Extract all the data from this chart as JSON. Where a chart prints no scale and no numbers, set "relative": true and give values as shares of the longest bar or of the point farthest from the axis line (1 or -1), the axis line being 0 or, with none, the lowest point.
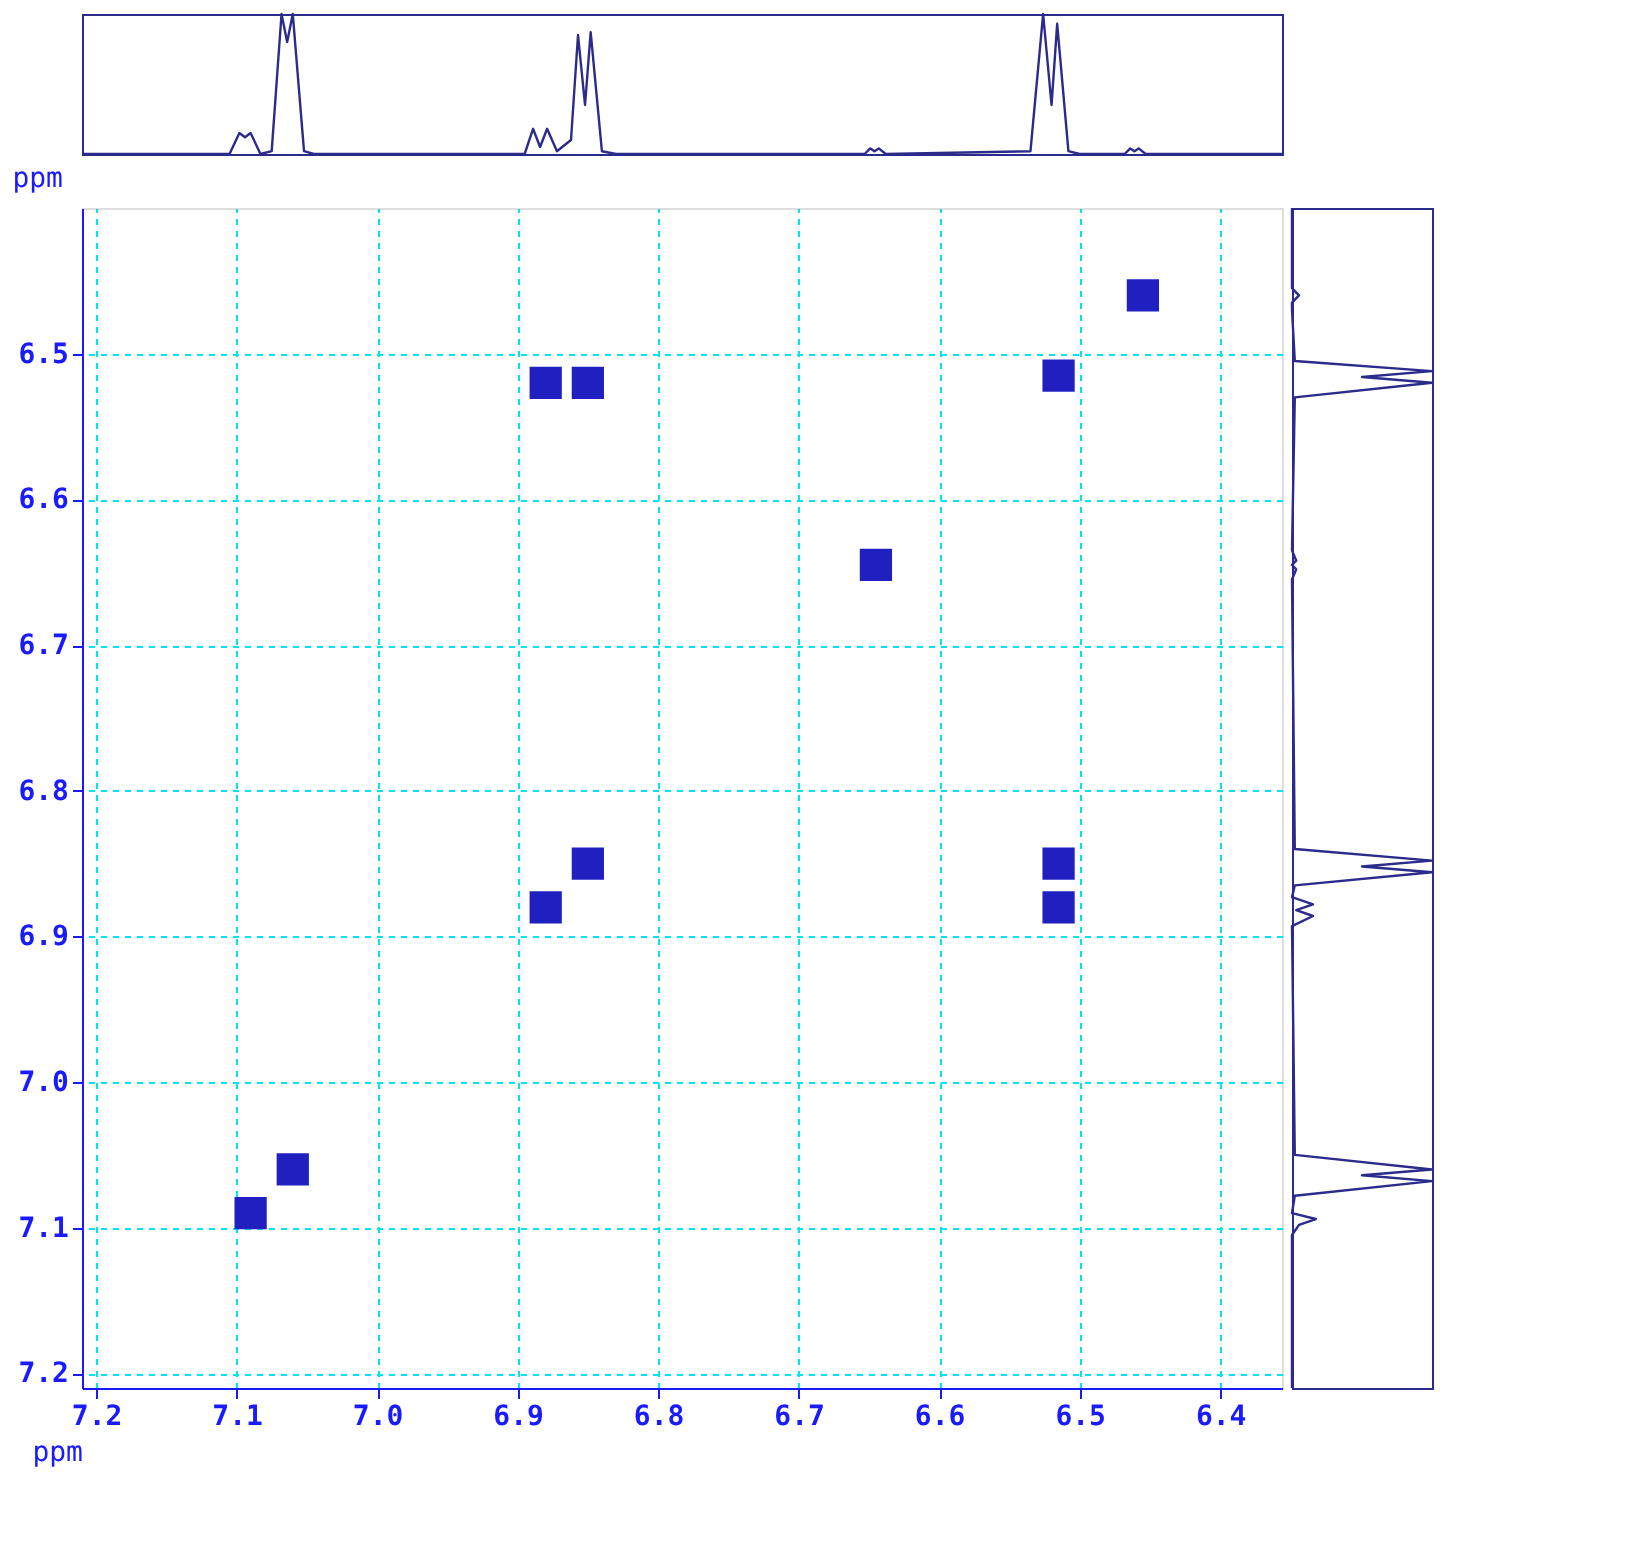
{
  "chart_data": [
    {
      "type": "line",
      "relative": true,
      "tick_labels": false,
      "xlim": [
        7.21,
        6.356
      ],
      "x": [
        7.21,
        7.105,
        7.098,
        7.094,
        7.09,
        7.083,
        7.075,
        7.068,
        7.064,
        7.06,
        7.052,
        7.045,
        6.895,
        6.889,
        6.884,
        6.879,
        6.872,
        6.862,
        6.857,
        6.852,
        6.848,
        6.84,
        6.83,
        6.653,
        6.649,
        6.646,
        6.643,
        6.638,
        6.535,
        6.526,
        6.52,
        6.516,
        6.508,
        6.5,
        6.468,
        6.464,
        6.461,
        6.458,
        6.453,
        6.356
      ],
      "series": [
        {
          "color": "#2b2b8c",
          "values": [
            0.0,
            0.0,
            0.15,
            0.12,
            0.15,
            0.0,
            0.02,
            1.0,
            0.8,
            1.0,
            0.02,
            0.0,
            0.0,
            0.18,
            0.05,
            0.18,
            0.02,
            0.1,
            0.85,
            0.35,
            0.87,
            0.02,
            0.0,
            0.0,
            0.04,
            0.02,
            0.04,
            0.0,
            0.02,
            1.0,
            0.35,
            0.93,
            0.02,
            0.0,
            0.0,
            0.04,
            0.02,
            0.04,
            0.0,
            0.0
          ]
        }
      ]
    },
    {
      "type": "scatter",
      "xlabel": "ppm",
      "ylabel": "ppm",
      "xlim": [
        7.21,
        6.356
      ],
      "ylim": [
        7.21,
        6.4
      ],
      "xticks": [
        7.2,
        7.1,
        {
          "value": 7,
          "label": "7.0"
        },
        6.9,
        6.8,
        6.7,
        6.6,
        6.5,
        6.4
      ],
      "yticks": [
        6.5,
        6.6,
        6.7,
        6.8,
        6.9,
        {
          "value": 7,
          "label": "7.0"
        },
        7.1,
        7.2
      ],
      "grid": true,
      "marker": "square",
      "x": [
        6.88,
        6.85,
        6.515,
        6.455,
        6.645,
        6.85,
        6.88,
        6.515,
        6.515,
        7.06,
        7.09
      ],
      "series": [
        {
          "color": "#2020c0",
          "values": [
            6.52,
            6.52,
            6.515,
            6.46,
            6.645,
            6.85,
            6.88,
            6.85,
            6.88,
            7.06,
            7.09
          ]
        }
      ]
    },
    {
      "type": "line",
      "relative": true,
      "tick_labels": false,
      "orientation": "horizontal",
      "ylim": [
        7.21,
        6.4
      ],
      "x": [
        6.4,
        6.455,
        6.46,
        6.465,
        6.47,
        6.505,
        6.512,
        6.516,
        6.52,
        6.53,
        6.635,
        6.642,
        6.645,
        6.648,
        6.655,
        6.84,
        6.848,
        6.852,
        6.856,
        6.865,
        6.873,
        6.878,
        6.882,
        6.886,
        6.893,
        7.05,
        7.06,
        7.064,
        7.068,
        7.078,
        7.09,
        7.094,
        7.098,
        7.105,
        7.21
      ],
      "series": [
        {
          "color": "#2b2b8c",
          "values": [
            0.0,
            0.0,
            0.05,
            0.0,
            0.0,
            0.02,
            1.0,
            0.5,
            1.0,
            0.02,
            0.0,
            0.03,
            0.0,
            0.03,
            0.0,
            0.02,
            1.0,
            0.5,
            1.0,
            0.02,
            0.0,
            0.15,
            0.03,
            0.15,
            0.0,
            0.02,
            1.0,
            0.5,
            1.0,
            0.02,
            0.0,
            0.17,
            0.05,
            0.0,
            0.0
          ]
        }
      ]
    }
  ]
}
